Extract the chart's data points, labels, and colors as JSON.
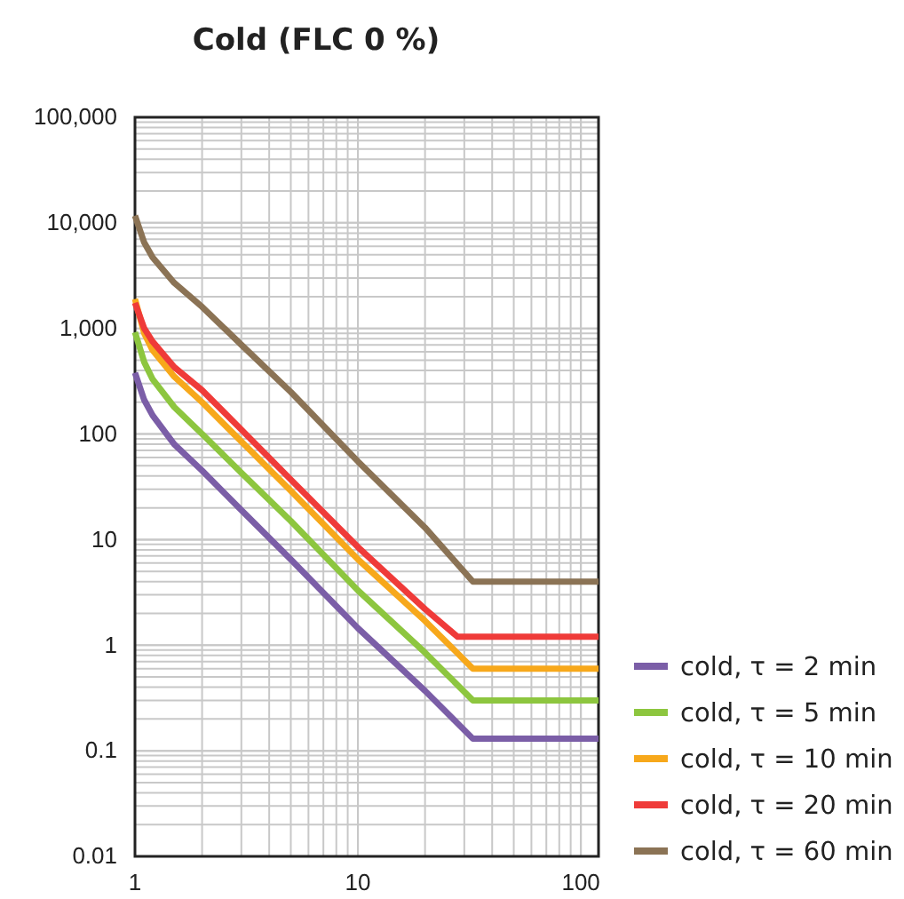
{
  "chart_data": {
    "type": "line",
    "title": "Cold (FLC 0 %)",
    "x": [
      1,
      1.1,
      1.2,
      1.5,
      2,
      3,
      5,
      10,
      20,
      32.8,
      120
    ],
    "series": [
      {
        "name": "cold, τ = 2 min",
        "color": "#7b5ea7",
        "values": [
          380,
          210,
          150,
          80,
          45,
          19,
          6.5,
          1.45,
          0.37,
          0.13,
          0.13
        ]
      },
      {
        "name": "cold, τ = 5 min",
        "color": "#8dc63f",
        "values": [
          920,
          480,
          330,
          180,
          100,
          43,
          15,
          3.3,
          0.85,
          0.3,
          0.3
        ]
      },
      {
        "name": "cold, τ = 10 min",
        "color": "#f7a81b",
        "values": [
          1900,
          900,
          620,
          350,
          200,
          85,
          29,
          6.5,
          1.7,
          0.6,
          0.6
        ]
      },
      {
        "name": "cold, τ = 20 min",
        "color": "#ef3b39",
        "x": [
          1,
          1.1,
          1.2,
          1.5,
          2,
          3,
          5,
          10,
          20,
          28,
          120
        ],
        "values": [
          1750,
          1000,
          750,
          430,
          260,
          110,
          37,
          8.5,
          2.2,
          1.2,
          1.2
        ]
      },
      {
        "name": "cold, τ = 60 min",
        "color": "#8b7355",
        "values": [
          11700,
          6500,
          4700,
          2700,
          1600,
          700,
          250,
          55,
          13,
          4,
          4
        ]
      }
    ],
    "log": "xy",
    "xlim": [
      1,
      120
    ],
    "xticks": [
      1,
      10,
      100
    ],
    "ylim": [
      0.01,
      100000
    ],
    "yticks": [
      {
        "value": 0.01,
        "label": "0.01"
      },
      {
        "value": 0.1,
        "label": "0.1"
      },
      1,
      10,
      100,
      {
        "value": 1000,
        "label": "1,000"
      },
      {
        "value": 10000,
        "label": "10,000"
      },
      {
        "value": 100000,
        "label": "100,000"
      }
    ],
    "grid": true,
    "legend": "right",
    "marker": "none",
    "line_style": "solid"
  }
}
